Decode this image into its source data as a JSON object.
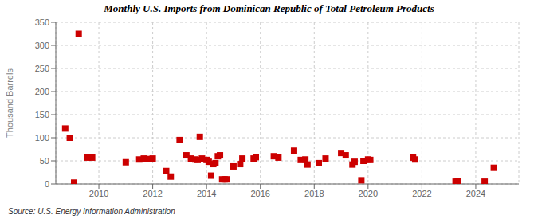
{
  "chart_data": {
    "type": "scatter",
    "title": "Monthly U.S. Imports from Dominican Republic of Total Petroleum Products",
    "ylabel": "Thousand Barrels",
    "source": "Source: U.S. Energy Information Administration",
    "color": "#cc0000",
    "marker": "square",
    "grid": true,
    "xlim": [
      2008.4,
      2025.6
    ],
    "xticks": [
      2010,
      2012,
      2014,
      2016,
      2018,
      2020,
      2022,
      2024
    ],
    "ylim": [
      0,
      350
    ],
    "yticks": [
      0,
      50,
      100,
      150,
      200,
      250,
      300,
      350
    ],
    "x": [
      2008.75,
      2008.92,
      2009.08,
      2009.25,
      2009.58,
      2009.75,
      2011.0,
      2011.5,
      2011.67,
      2011.83,
      2012.0,
      2012.5,
      2012.67,
      2013.0,
      2013.25,
      2013.42,
      2013.58,
      2013.67,
      2013.75,
      2013.83,
      2014.0,
      2014.08,
      2014.17,
      2014.25,
      2014.33,
      2014.42,
      2014.5,
      2014.58,
      2014.67,
      2014.75,
      2015.0,
      2015.25,
      2015.33,
      2015.75,
      2015.83,
      2016.5,
      2016.67,
      2017.25,
      2017.5,
      2017.67,
      2017.75,
      2018.17,
      2018.42,
      2019.0,
      2019.17,
      2019.42,
      2019.5,
      2019.75,
      2019.83,
      2020.0,
      2020.08,
      2021.67,
      2021.75,
      2023.25,
      2023.33,
      2024.33,
      2024.67
    ],
    "values": [
      120,
      100,
      3,
      325,
      57,
      57,
      47,
      53,
      55,
      54,
      55,
      28,
      16,
      95,
      62,
      55,
      53,
      52,
      102,
      55,
      52,
      48,
      18,
      43,
      45,
      60,
      62,
      10,
      10,
      10,
      38,
      43,
      55,
      55,
      58,
      60,
      57,
      72,
      52,
      53,
      42,
      45,
      55,
      67,
      62,
      42,
      48,
      8,
      50,
      53,
      52,
      57,
      53,
      5,
      6,
      5,
      35
    ]
  }
}
